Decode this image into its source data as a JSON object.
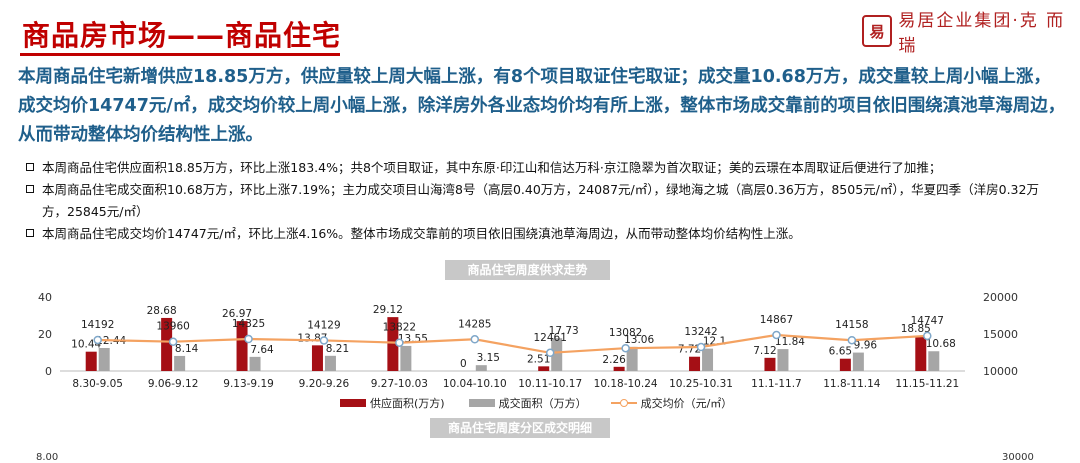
{
  "header": {
    "title": "商品房市场——商品住宅",
    "logo_text": "易居企业集团·克 而 瑞",
    "seal_char": "易"
  },
  "summary": "本周商品住宅新增供应18.85万方，供应量较上周大幅上涨，有8个项目取证住宅取证；成交量10.68万方，成交量较上周小幅上涨，成交均价14747元/㎡，成交均价较上周小幅上涨，除洋房外各业态均价均有所上涨，整体市场成交靠前的项目依旧围绕滇池草海周边，从而带动整体均价结构性上涨。",
  "bullets": [
    "本周商品住宅供应面积18.85万方，环比上涨183.4%；共8个项目取证，其中东原·印江山和信达万科·京江隐翠为首次取证；美的云璟在本周取证后便进行了加推；",
    "本周商品住宅成交面积10.68万方，环比上涨7.19%；主力成交项目山海湾8号（高层0.40万方，24087元/㎡），绿地海之城（高层0.36万方，8505元/㎡），华夏四季（洋房0.32万方，25845元/㎡）",
    "本周商品住宅成交均价14747元/㎡，环比上涨4.16%。整体市场成交靠前的项目依旧围绕滇池草海周边，从而带动整体均价结构性上涨。"
  ],
  "chart_title": "商品住宅周度供求走势",
  "chart2_title": "商品住宅周度分区成交明细",
  "chart2_axis": {
    "left_top": "8.00",
    "right_top": "30000"
  },
  "colors": {
    "supply": "#a50f15",
    "deal_area": "#a6a6a6",
    "price": "#f4a261",
    "title_red": "#c00000",
    "summary_blue": "#1f5f8b"
  },
  "chart_data": {
    "type": "bar",
    "title": "商品住宅周度供求走势",
    "categories": [
      "8.30-9.05",
      "9.06-9.12",
      "9.13-9.19",
      "9.20-9.26",
      "9.27-10.03",
      "10.04-10.10",
      "10.11-10.17",
      "10.18-10.24",
      "10.25-10.31",
      "11.1-11.7",
      "11.8-11.14",
      "11.15-11.21"
    ],
    "series": [
      {
        "name": "供应面积(万方)",
        "type": "bar",
        "axis": "left",
        "values": [
          10.44,
          28.68,
          26.97,
          13.87,
          29.12,
          0,
          2.51,
          2.26,
          7.72,
          7.12,
          6.65,
          18.85
        ]
      },
      {
        "name": "成交面积（万方）",
        "type": "bar",
        "axis": "left",
        "values": [
          12.44,
          8.14,
          7.64,
          8.21,
          13.55,
          3.15,
          17.73,
          13.06,
          12.1,
          11.84,
          9.96,
          10.68
        ]
      },
      {
        "name": "成交均价（元/㎡）",
        "type": "line",
        "axis": "right",
        "values": [
          14192,
          13960,
          14325,
          14129,
          13822,
          14285,
          12461,
          13082,
          13242,
          14867,
          14158,
          14747
        ]
      }
    ],
    "ylim_left": [
      0,
      40
    ],
    "yticks_left": [
      0,
      20,
      40
    ],
    "ylim_right": [
      10000,
      20000
    ],
    "yticks_right": [
      10000,
      15000,
      20000
    ],
    "grid": false,
    "legend_position": "bottom"
  }
}
